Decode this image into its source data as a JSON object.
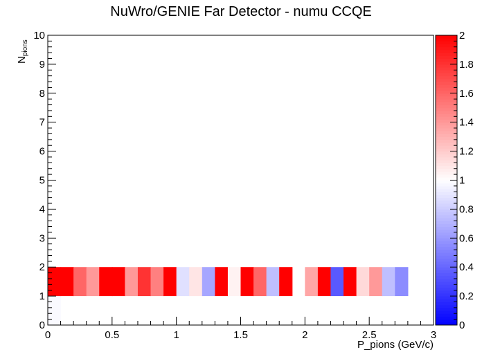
{
  "chart_data": {
    "type": "heatmap",
    "title": "NuWro/GENIE Far Detector - numu CCQE",
    "xlabel": "P_pions (GeV/c)",
    "ylabel_main": "N",
    "ylabel_sub": "pions",
    "xlim": [
      0,
      3
    ],
    "ylim": [
      0,
      10
    ],
    "zlim": [
      0,
      2
    ],
    "x_ticks": [
      {
        "v": 0,
        "label": "0"
      },
      {
        "v": 0.5,
        "label": "0.5"
      },
      {
        "v": 1,
        "label": "1"
      },
      {
        "v": 1.5,
        "label": "1.5"
      },
      {
        "v": 2,
        "label": "2"
      },
      {
        "v": 2.5,
        "label": "2.5"
      },
      {
        "v": 3,
        "label": "3"
      }
    ],
    "y_ticks": [
      {
        "v": 0,
        "label": "0"
      },
      {
        "v": 1,
        "label": "1"
      },
      {
        "v": 2,
        "label": "2"
      },
      {
        "v": 3,
        "label": "3"
      },
      {
        "v": 4,
        "label": "4"
      },
      {
        "v": 5,
        "label": "5"
      },
      {
        "v": 6,
        "label": "6"
      },
      {
        "v": 7,
        "label": "7"
      },
      {
        "v": 8,
        "label": "8"
      },
      {
        "v": 9,
        "label": "9"
      },
      {
        "v": 10,
        "label": "10"
      }
    ],
    "z_ticks": [
      {
        "v": 0,
        "label": "0"
      },
      {
        "v": 0.2,
        "label": "0.2"
      },
      {
        "v": 0.4,
        "label": "0.4"
      },
      {
        "v": 0.6,
        "label": "0.6"
      },
      {
        "v": 0.8,
        "label": "0.8"
      },
      {
        "v": 1,
        "label": "1"
      },
      {
        "v": 1.2,
        "label": "1.2"
      },
      {
        "v": 1.4,
        "label": "1.4"
      },
      {
        "v": 1.6,
        "label": "1.6"
      },
      {
        "v": 1.8,
        "label": "1.8"
      },
      {
        "v": 2,
        "label": "2"
      }
    ],
    "colors": {
      "low": "#0000ff",
      "mid": "#ffffff",
      "high": "#ff0000"
    },
    "bin_width": 0.1,
    "cells": [
      {
        "x": 0.0,
        "y": 0,
        "z": 0.98
      },
      {
        "x": 0.0,
        "y": 1,
        "z": 2.0
      },
      {
        "x": 0.1,
        "y": 1,
        "z": 2.0
      },
      {
        "x": 0.2,
        "y": 1,
        "z": 1.6
      },
      {
        "x": 0.3,
        "y": 1,
        "z": 1.4
      },
      {
        "x": 0.4,
        "y": 1,
        "z": 2.0
      },
      {
        "x": 0.5,
        "y": 1,
        "z": 2.0
      },
      {
        "x": 0.6,
        "y": 1,
        "z": 1.4
      },
      {
        "x": 0.7,
        "y": 1,
        "z": 1.8
      },
      {
        "x": 0.8,
        "y": 1,
        "z": 1.5
      },
      {
        "x": 0.9,
        "y": 1,
        "z": 2.0
      },
      {
        "x": 1.0,
        "y": 1,
        "z": 0.88
      },
      {
        "x": 1.1,
        "y": 1,
        "z": 1.1
      },
      {
        "x": 1.2,
        "y": 1,
        "z": 0.65
      },
      {
        "x": 1.3,
        "y": 1,
        "z": 2.0
      },
      {
        "x": 1.4,
        "y": 1,
        "z": 1.05
      },
      {
        "x": 1.5,
        "y": 1,
        "z": 2.0
      },
      {
        "x": 1.6,
        "y": 1,
        "z": 1.6
      },
      {
        "x": 1.7,
        "y": 1,
        "z": 0.75
      },
      {
        "x": 1.8,
        "y": 1,
        "z": 2.0
      },
      {
        "x": 2.0,
        "y": 1,
        "z": 1.35
      },
      {
        "x": 2.1,
        "y": 1,
        "z": 2.0
      },
      {
        "x": 2.2,
        "y": 1,
        "z": 0.35
      },
      {
        "x": 2.3,
        "y": 1,
        "z": 2.0
      },
      {
        "x": 2.4,
        "y": 1,
        "z": 1.15
      },
      {
        "x": 2.5,
        "y": 1,
        "z": 1.4
      },
      {
        "x": 2.6,
        "y": 1,
        "z": 0.75
      },
      {
        "x": 2.7,
        "y": 1,
        "z": 0.55
      }
    ]
  }
}
